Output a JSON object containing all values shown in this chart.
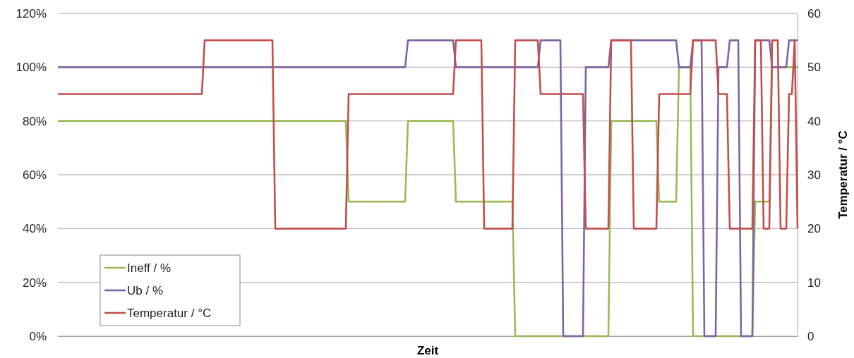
{
  "chart_data": {
    "type": "line",
    "xlabel": "Zeit",
    "y2label": "Temperatur / °C",
    "grid": "y",
    "legend": "bottom left",
    "tick_labels": "y",
    "categories": [
      null,
      null,
      null,
      null,
      null,
      null,
      null,
      null,
      null,
      null,
      null,
      null,
      null,
      null,
      null,
      null,
      null,
      null,
      null,
      null,
      null,
      null,
      null,
      null,
      null,
      null,
      null,
      null,
      null,
      null,
      null,
      null,
      null,
      null,
      null,
      null,
      null,
      null,
      null,
      null,
      null,
      null,
      null,
      null,
      null,
      null,
      null,
      null,
      null,
      null,
      null,
      null,
      null,
      null,
      null,
      null,
      null,
      null,
      null,
      null,
      null,
      null,
      null,
      null,
      null,
      null,
      null,
      null,
      null,
      null,
      null,
      null,
      null,
      null,
      null,
      null,
      null,
      null,
      null,
      null,
      null,
      null,
      null,
      null,
      null,
      null,
      null,
      null,
      null,
      null,
      null,
      null,
      null,
      null,
      null,
      null,
      null,
      null,
      null,
      null,
      null,
      null,
      null,
      null,
      null,
      null,
      null,
      null,
      null,
      null,
      null,
      null,
      null,
      null,
      null,
      null,
      null,
      null,
      null,
      null,
      null,
      null,
      null,
      null,
      null,
      null,
      null,
      null,
      null,
      null,
      null,
      null,
      null,
      null,
      null,
      null,
      null,
      null,
      null,
      null,
      null,
      null,
      null,
      null,
      null,
      null,
      null,
      null,
      null,
      null,
      null,
      null,
      null,
      null,
      null,
      null,
      null,
      null,
      null,
      null,
      null,
      null,
      null,
      null,
      null,
      null,
      null,
      null,
      null,
      null,
      null,
      null,
      null,
      null,
      null,
      null,
      null,
      null,
      null,
      null,
      null,
      null,
      null,
      null,
      null,
      null,
      null,
      null,
      null,
      null,
      null,
      null,
      null,
      null,
      null,
      null,
      null,
      null,
      null,
      null,
      null,
      null,
      null,
      null,
      null,
      null,
      null,
      null,
      null,
      null,
      null,
      null,
      null,
      null,
      null,
      null,
      null,
      null,
      null,
      null,
      null,
      null,
      null,
      null,
      null,
      null,
      null,
      null,
      null,
      null,
      null,
      null,
      null,
      null,
      null,
      null,
      null,
      null,
      null,
      null,
      null,
      null,
      null,
      null,
      null,
      null,
      null,
      null,
      null,
      null,
      null,
      null,
      null,
      null,
      null,
      null,
      null,
      null,
      null,
      null,
      null,
      null,
      null
    ],
    "ylim": [
      0,
      120
    ],
    "yticks": [
      {
        "value": 0,
        "label": "0%"
      },
      {
        "value": 20,
        "label": "20%"
      },
      {
        "value": 40,
        "label": "40%"
      },
      {
        "value": 60,
        "label": "60%"
      },
      {
        "value": 80,
        "label": "80%"
      },
      {
        "value": 100,
        "label": "100%"
      },
      {
        "value": 120,
        "label": "120%"
      }
    ],
    "y2lim": [
      0,
      60
    ],
    "y2ticks": [
      0,
      10,
      20,
      30,
      40,
      50,
      60
    ],
    "series": [
      {
        "name": "Ineff / %",
        "color": "#9bbb59",
        "values": [
          80,
          80,
          80,
          80,
          80,
          80,
          80,
          80,
          80,
          80,
          80,
          80,
          80,
          80,
          80,
          80,
          80,
          80,
          80,
          80,
          80,
          80,
          80,
          80,
          80,
          80,
          80,
          80,
          80,
          80,
          80,
          80,
          80,
          80,
          80,
          80,
          80,
          80,
          80,
          80,
          80,
          80,
          80,
          80,
          80,
          80,
          80,
          80,
          80,
          80,
          80,
          80,
          80,
          80,
          80,
          80,
          80,
          80,
          80,
          80,
          80,
          80,
          80,
          80,
          80,
          80,
          80,
          80,
          80,
          80,
          80,
          80,
          80,
          80,
          80,
          80,
          80,
          80,
          80,
          80,
          80,
          80,
          80,
          80,
          80,
          80,
          80,
          80,
          80,
          80,
          80,
          80,
          80,
          80,
          80,
          80,
          80,
          80,
          80,
          80,
          80,
          80,
          80,
          50,
          50,
          50,
          50,
          50,
          50,
          50,
          50,
          50,
          50,
          50,
          50,
          50,
          50,
          50,
          50,
          50,
          50,
          50,
          50,
          50,
          80,
          80,
          80,
          80,
          80,
          80,
          80,
          80,
          80,
          80,
          80,
          80,
          80,
          80,
          80,
          80,
          80,
          50,
          50,
          50,
          50,
          50,
          50,
          50,
          50,
          50,
          50,
          50,
          50,
          50,
          50,
          50,
          50,
          50,
          50,
          50,
          50,
          50,
          0,
          0,
          0,
          0,
          0,
          0,
          0,
          0,
          0,
          0,
          0,
          0,
          0,
          0,
          0,
          0,
          0,
          0,
          0,
          0,
          0,
          0,
          0,
          0,
          0,
          0,
          0,
          0,
          0,
          0,
          0,
          0,
          0,
          0,
          80,
          80,
          80,
          80,
          80,
          80,
          80,
          80,
          80,
          80,
          80,
          80,
          80,
          80,
          80,
          80,
          80,
          50,
          50,
          50,
          50,
          50,
          50,
          50,
          100,
          100,
          100,
          100,
          100,
          0,
          0,
          0,
          0,
          0,
          0,
          0,
          0,
          0,
          0,
          0,
          0,
          0,
          0,
          0,
          0,
          0,
          0,
          0,
          0,
          0,
          0,
          50,
          50,
          50,
          50,
          50,
          50,
          100,
          100,
          100,
          100,
          100,
          100,
          100,
          100,
          100,
          100
        ]
      },
      {
        "name": "Ub / %",
        "color": "#8064a2",
        "values": [
          100,
          100,
          100,
          100,
          100,
          100,
          100,
          100,
          100,
          100,
          100,
          100,
          100,
          100,
          100,
          100,
          100,
          100,
          100,
          100,
          100,
          100,
          100,
          100,
          100,
          100,
          100,
          100,
          100,
          100,
          100,
          100,
          100,
          100,
          100,
          100,
          100,
          100,
          100,
          100,
          100,
          100,
          100,
          100,
          100,
          100,
          100,
          100,
          100,
          100,
          100,
          100,
          100,
          100,
          100,
          100,
          100,
          100,
          100,
          100,
          100,
          100,
          100,
          100,
          100,
          100,
          100,
          100,
          100,
          100,
          100,
          100,
          100,
          100,
          100,
          100,
          100,
          100,
          100,
          100,
          100,
          100,
          100,
          100,
          100,
          100,
          100,
          100,
          100,
          100,
          100,
          100,
          100,
          100,
          100,
          100,
          100,
          100,
          100,
          100,
          100,
          100,
          100,
          100,
          100,
          100,
          100,
          100,
          100,
          100,
          100,
          100,
          100,
          100,
          100,
          100,
          100,
          100,
          100,
          100,
          100,
          100,
          100,
          100,
          110,
          110,
          110,
          110,
          110,
          110,
          110,
          110,
          110,
          110,
          110,
          110,
          110,
          110,
          110,
          110,
          110,
          100,
          100,
          100,
          100,
          100,
          100,
          100,
          100,
          100,
          100,
          100,
          100,
          100,
          100,
          100,
          100,
          100,
          100,
          100,
          100,
          100,
          100,
          100,
          100,
          100,
          100,
          100,
          100,
          100,
          100,
          110,
          110,
          110,
          110,
          110,
          110,
          110,
          110,
          0,
          0,
          0,
          0,
          0,
          0,
          0,
          0,
          100,
          100,
          100,
          100,
          100,
          100,
          100,
          100,
          100,
          110,
          110,
          110,
          110,
          110,
          110,
          110,
          110,
          110,
          110,
          110,
          110,
          110,
          110,
          110,
          110,
          110,
          110,
          110,
          110,
          110,
          110,
          110,
          110,
          100,
          100,
          100,
          100,
          100,
          110,
          110,
          110,
          110,
          0,
          0,
          0,
          0,
          0,
          100,
          100,
          100,
          100,
          110,
          110,
          110,
          110,
          0,
          0,
          0,
          0,
          0,
          110,
          110,
          110,
          110,
          110,
          110,
          100,
          100,
          100,
          100,
          100,
          100,
          110,
          110,
          110,
          110
        ]
      },
      {
        "name": "Temperatur / °C",
        "color": "#c0504d",
        "axis": "y2",
        "values": [
          45,
          45,
          45,
          45,
          45,
          45,
          45,
          45,
          45,
          45,
          45,
          45,
          45,
          45,
          45,
          45,
          45,
          45,
          45,
          45,
          45,
          45,
          45,
          45,
          45,
          45,
          45,
          45,
          45,
          45,
          45,
          45,
          45,
          45,
          45,
          45,
          45,
          45,
          45,
          45,
          45,
          45,
          45,
          45,
          45,
          45,
          45,
          45,
          45,
          45,
          45,
          45,
          55,
          55,
          55,
          55,
          55,
          55,
          55,
          55,
          55,
          55,
          55,
          55,
          55,
          55,
          55,
          55,
          55,
          55,
          55,
          55,
          55,
          55,
          55,
          55,
          55,
          20,
          20,
          20,
          20,
          20,
          20,
          20,
          20,
          20,
          20,
          20,
          20,
          20,
          20,
          20,
          20,
          20,
          20,
          20,
          20,
          20,
          20,
          20,
          20,
          20,
          20,
          45,
          45,
          45,
          45,
          45,
          45,
          45,
          45,
          45,
          45,
          45,
          45,
          45,
          45,
          45,
          45,
          45,
          45,
          45,
          45,
          45,
          45,
          45,
          45,
          45,
          45,
          45,
          45,
          45,
          45,
          45,
          45,
          45,
          45,
          45,
          45,
          45,
          45,
          55,
          55,
          55,
          55,
          55,
          55,
          55,
          55,
          55,
          55,
          20,
          20,
          20,
          20,
          20,
          20,
          20,
          20,
          20,
          20,
          20,
          55,
          55,
          55,
          55,
          55,
          55,
          55,
          55,
          55,
          45,
          45,
          45,
          45,
          45,
          45,
          45,
          45,
          45,
          45,
          45,
          45,
          45,
          45,
          45,
          45,
          20,
          20,
          20,
          20,
          20,
          20,
          20,
          20,
          20,
          55,
          55,
          55,
          55,
          55,
          55,
          55,
          55,
          20,
          20,
          20,
          20,
          20,
          20,
          20,
          20,
          20,
          45,
          45,
          45,
          45,
          45,
          45,
          45,
          45,
          45,
          45,
          45,
          45,
          55,
          55,
          55,
          55,
          55,
          55,
          55,
          55,
          55,
          45,
          45,
          45,
          45,
          20,
          20,
          20,
          20,
          20,
          20,
          20,
          20,
          20,
          55,
          55,
          55,
          20,
          20,
          20,
          55,
          55,
          55,
          20,
          20,
          20,
          45,
          45,
          55,
          20
        ]
      }
    ]
  }
}
